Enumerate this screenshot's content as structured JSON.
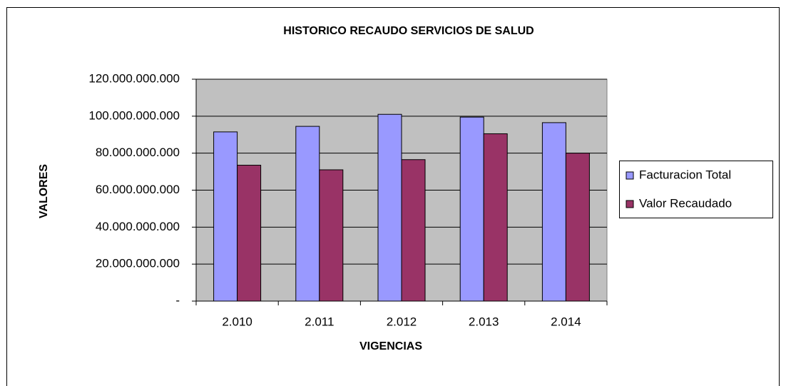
{
  "chart_data": {
    "type": "bar",
    "title": "HISTORICO RECAUDO SERVICIOS DE SALUD",
    "x_label": "VIGENCIAS",
    "y_label": "VALORES",
    "categories": [
      "2.010",
      "2.011",
      "2.012",
      "2.013",
      "2.014"
    ],
    "series": [
      {
        "name": "Facturacion Total",
        "color": "#9999ff",
        "values": [
          91500000000,
          94500000000,
          101000000000,
          99500000000,
          96500000000
        ]
      },
      {
        "name": "Valor Recaudado",
        "color": "#993366",
        "values": [
          73500000000,
          71000000000,
          76500000000,
          90500000000,
          80000000000
        ]
      }
    ],
    "ylim": [
      0,
      120000000000
    ],
    "yticks": [
      {
        "value": 0,
        "label": "-"
      },
      {
        "value": 20000000000,
        "label": "20.000.000.000"
      },
      {
        "value": 40000000000,
        "label": "40.000.000.000"
      },
      {
        "value": 60000000000,
        "label": "60.000.000.000"
      },
      {
        "value": 80000000000,
        "label": "80.000.000.000"
      },
      {
        "value": 100000000000,
        "label": "100.000.000.000"
      },
      {
        "value": 120000000000,
        "label": "120.000.000.000"
      }
    ],
    "grid": true,
    "legend": "right"
  }
}
